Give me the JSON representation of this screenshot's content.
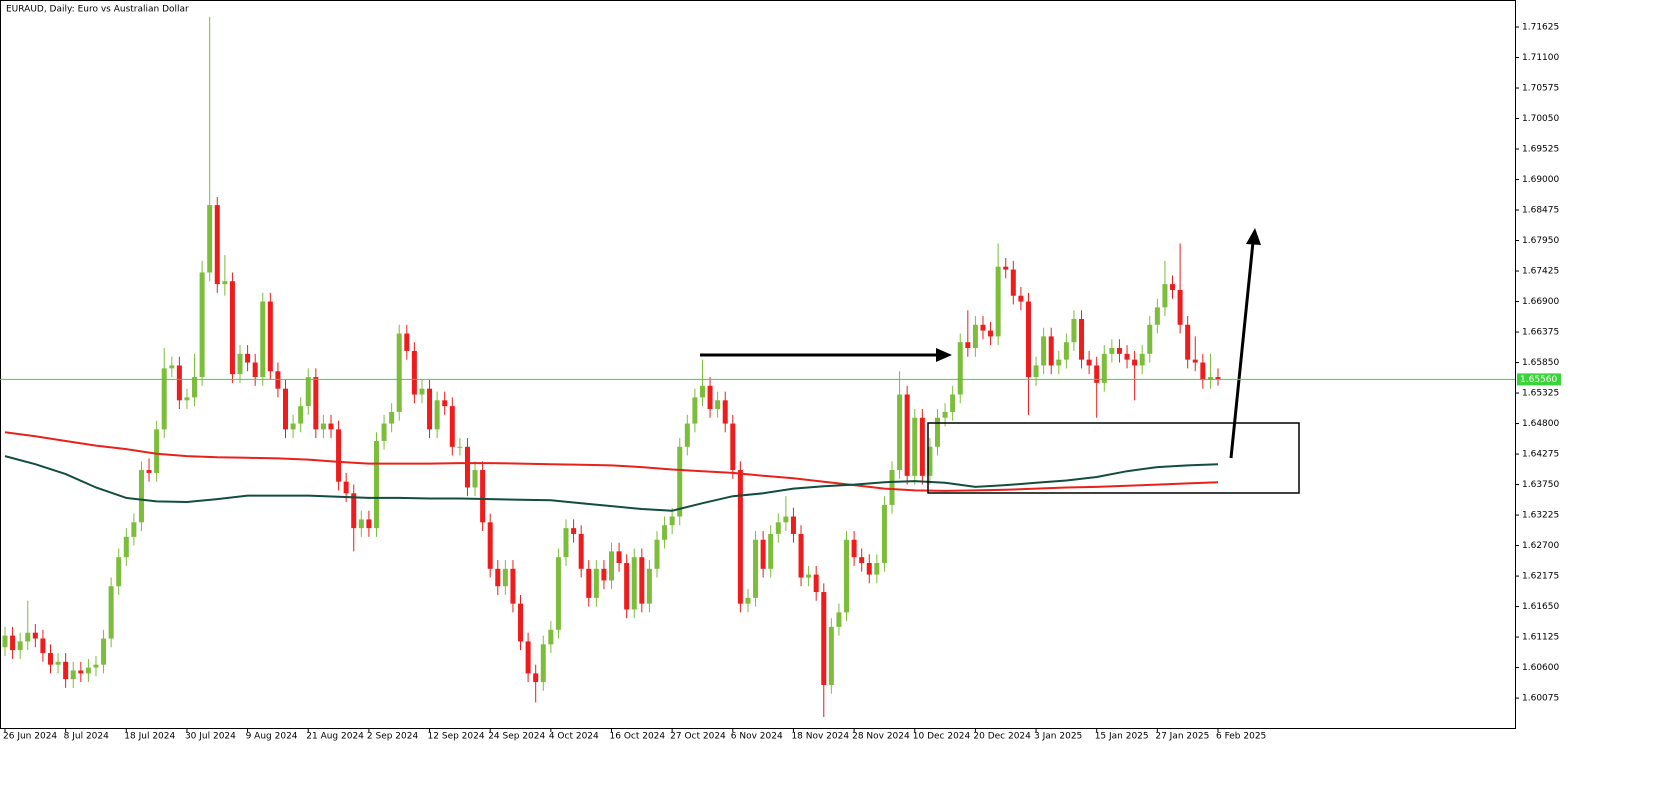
{
  "chart_data": {
    "type": "candlestick",
    "title": "EURAUD, Daily:  Euro vs Australian Dollar",
    "up_color": "#7cbd3b",
    "down_color": "#ee1c1c",
    "ylim": [
      1.5956,
      1.7209
    ],
    "yticks": [
      1.71625,
      {
        "value": 1.711,
        "label": "1.71100"
      },
      1.70575,
      {
        "value": 1.7005,
        "label": "1.70050"
      },
      1.69525,
      {
        "value": 1.69,
        "label": "1.69000"
      },
      1.68475,
      {
        "value": 1.6795,
        "label": "1.67950"
      },
      1.67425,
      {
        "value": 1.669,
        "label": "1.66900"
      },
      1.66375,
      {
        "value": 1.6585,
        "label": "1.65850"
      },
      1.65325,
      {
        "value": 1.648,
        "label": "1.64800"
      },
      1.64275,
      {
        "value": 1.6375,
        "label": "1.63750"
      },
      1.63225,
      {
        "value": 1.627,
        "label": "1.62700"
      },
      1.62175,
      {
        "value": 1.6165,
        "label": "1.61650"
      },
      1.61125,
      {
        "value": 1.606,
        "label": "1.60600"
      },
      1.60075
    ],
    "price_line": {
      "value": 1.6556,
      "label": "1.65560",
      "color": "#3ad43a"
    },
    "categories": [
      "26 Jun 2024",
      null,
      null,
      null,
      null,
      null,
      null,
      null,
      "8 Jul 2024",
      null,
      null,
      null,
      null,
      null,
      null,
      null,
      "18 Jul 2024",
      null,
      null,
      null,
      null,
      null,
      null,
      null,
      "30 Jul 2024",
      null,
      null,
      null,
      null,
      null,
      null,
      null,
      "9 Aug 2024",
      null,
      null,
      null,
      null,
      null,
      null,
      null,
      "21 Aug 2024",
      null,
      null,
      null,
      null,
      null,
      null,
      null,
      "2 Sep 2024",
      null,
      null,
      null,
      null,
      null,
      null,
      null,
      "12 Sep 2024",
      null,
      null,
      null,
      null,
      null,
      null,
      null,
      "24 Sep 2024",
      null,
      null,
      null,
      null,
      null,
      null,
      null,
      "4 Oct 2024",
      null,
      null,
      null,
      null,
      null,
      null,
      null,
      "16 Oct 2024",
      null,
      null,
      null,
      null,
      null,
      null,
      null,
      "27 Oct 2024",
      null,
      null,
      null,
      null,
      null,
      null,
      null,
      "6 Nov 2024",
      null,
      null,
      null,
      null,
      null,
      null,
      null,
      "18 Nov 2024",
      null,
      null,
      null,
      null,
      null,
      null,
      null,
      "28 Nov 2024",
      null,
      null,
      null,
      null,
      null,
      null,
      null,
      "10 Dec 2024",
      null,
      null,
      null,
      null,
      null,
      null,
      null,
      "20 Dec 2024",
      null,
      null,
      null,
      null,
      null,
      null,
      null,
      "3 Jan 2025",
      null,
      null,
      null,
      null,
      null,
      null,
      null,
      "15 Jan 2025",
      null,
      null,
      null,
      null,
      null,
      null,
      null,
      "27 Jan 2025",
      null,
      null,
      null,
      null,
      null,
      null,
      null,
      "6 Feb 2025"
    ],
    "ohlc": [
      [
        1.6095,
        1.613,
        1.608,
        1.6115
      ],
      [
        1.6115,
        1.613,
        1.6075,
        1.609
      ],
      [
        1.609,
        1.612,
        1.6075,
        1.6105
      ],
      [
        1.6105,
        1.6175,
        1.609,
        1.612
      ],
      [
        1.612,
        1.6135,
        1.6095,
        1.611
      ],
      [
        1.611,
        1.6125,
        1.607,
        1.6085
      ],
      [
        1.6085,
        1.61,
        1.605,
        1.6065
      ],
      [
        1.6065,
        1.6085,
        1.605,
        1.607
      ],
      [
        1.607,
        1.6085,
        1.6025,
        1.604
      ],
      [
        1.604,
        1.607,
        1.6025,
        1.6055
      ],
      [
        1.6055,
        1.607,
        1.6035,
        1.605
      ],
      [
        1.605,
        1.6075,
        1.6035,
        1.606
      ],
      [
        1.606,
        1.608,
        1.6045,
        1.6065
      ],
      [
        1.6065,
        1.6125,
        1.605,
        1.611
      ],
      [
        1.611,
        1.6215,
        1.6095,
        1.62
      ],
      [
        1.62,
        1.6265,
        1.6185,
        1.625
      ],
      [
        1.625,
        1.63,
        1.6235,
        1.6285
      ],
      [
        1.6285,
        1.6325,
        1.627,
        1.631
      ],
      [
        1.631,
        1.6415,
        1.6295,
        1.64
      ],
      [
        1.64,
        1.642,
        1.638,
        1.6395
      ],
      [
        1.6395,
        1.6485,
        1.638,
        1.647
      ],
      [
        1.647,
        1.661,
        1.6455,
        1.6575
      ],
      [
        1.6575,
        1.6595,
        1.656,
        1.658
      ],
      [
        1.658,
        1.6595,
        1.6505,
        1.652
      ],
      [
        1.652,
        1.654,
        1.6505,
        1.6525
      ],
      [
        1.6525,
        1.66,
        1.651,
        1.656
      ],
      [
        1.656,
        1.676,
        1.6545,
        1.674
      ],
      [
        1.674,
        1.718,
        1.6725,
        1.6856
      ],
      [
        1.6856,
        1.687,
        1.6705,
        1.672
      ],
      [
        1.672,
        1.677,
        1.67,
        1.6725
      ],
      [
        1.6725,
        1.674,
        1.655,
        1.6565
      ],
      [
        1.6565,
        1.6615,
        1.655,
        1.66
      ],
      [
        1.66,
        1.6615,
        1.657,
        1.6585
      ],
      [
        1.6585,
        1.66,
        1.6545,
        1.656
      ],
      [
        1.656,
        1.6705,
        1.6545,
        1.669
      ],
      [
        1.669,
        1.6705,
        1.6555,
        1.657
      ],
      [
        1.657,
        1.6585,
        1.6525,
        1.654
      ],
      [
        1.654,
        1.6555,
        1.6455,
        1.647
      ],
      [
        1.647,
        1.6495,
        1.6455,
        1.648
      ],
      [
        1.648,
        1.6525,
        1.6465,
        1.651
      ],
      [
        1.651,
        1.6575,
        1.6495,
        1.656
      ],
      [
        1.656,
        1.6575,
        1.6455,
        1.647
      ],
      [
        1.647,
        1.6495,
        1.6455,
        1.648
      ],
      [
        1.648,
        1.6495,
        1.6455,
        1.647
      ],
      [
        1.647,
        1.6485,
        1.6365,
        1.638
      ],
      [
        1.638,
        1.6395,
        1.6345,
        1.636
      ],
      [
        1.636,
        1.6375,
        1.626,
        1.63
      ],
      [
        1.63,
        1.633,
        1.6285,
        1.6315
      ],
      [
        1.6315,
        1.633,
        1.6285,
        1.63
      ],
      [
        1.63,
        1.6465,
        1.6285,
        1.645
      ],
      [
        1.645,
        1.6495,
        1.6435,
        1.648
      ],
      [
        1.648,
        1.6515,
        1.6465,
        1.65
      ],
      [
        1.65,
        1.665,
        1.6485,
        1.6635
      ],
      [
        1.6635,
        1.665,
        1.659,
        1.6605
      ],
      [
        1.6605,
        1.662,
        1.6515,
        1.653
      ],
      [
        1.653,
        1.6555,
        1.6515,
        1.654
      ],
      [
        1.654,
        1.6555,
        1.6455,
        1.647
      ],
      [
        1.647,
        1.6535,
        1.6455,
        1.652
      ],
      [
        1.652,
        1.6535,
        1.6495,
        1.651
      ],
      [
        1.651,
        1.6525,
        1.6425,
        1.644
      ],
      [
        1.644,
        1.6455,
        1.6425,
        1.644
      ],
      [
        1.644,
        1.6455,
        1.6355,
        1.637
      ],
      [
        1.637,
        1.6415,
        1.6355,
        1.64
      ],
      [
        1.64,
        1.6415,
        1.6295,
        1.631
      ],
      [
        1.631,
        1.6325,
        1.6215,
        1.623
      ],
      [
        1.623,
        1.6245,
        1.6185,
        1.62
      ],
      [
        1.62,
        1.6245,
        1.6185,
        1.623
      ],
      [
        1.623,
        1.6245,
        1.6155,
        1.617
      ],
      [
        1.617,
        1.6185,
        1.609,
        1.6105
      ],
      [
        1.6105,
        1.612,
        1.6035,
        1.605
      ],
      [
        1.605,
        1.6065,
        1.6,
        1.6035
      ],
      [
        1.6035,
        1.6115,
        1.602,
        1.61
      ],
      [
        1.61,
        1.614,
        1.6085,
        1.6125
      ],
      [
        1.6125,
        1.6265,
        1.611,
        1.625
      ],
      [
        1.625,
        1.6315,
        1.6235,
        1.63
      ],
      [
        1.63,
        1.6315,
        1.6275,
        1.629
      ],
      [
        1.629,
        1.6305,
        1.6215,
        1.623
      ],
      [
        1.623,
        1.6245,
        1.6165,
        1.618
      ],
      [
        1.618,
        1.6245,
        1.6165,
        1.623
      ],
      [
        1.623,
        1.6245,
        1.6195,
        1.621
      ],
      [
        1.621,
        1.6275,
        1.6195,
        1.626
      ],
      [
        1.626,
        1.6275,
        1.6225,
        1.624
      ],
      [
        1.624,
        1.6255,
        1.6145,
        1.616
      ],
      [
        1.616,
        1.6265,
        1.6145,
        1.625
      ],
      [
        1.625,
        1.6265,
        1.6155,
        1.617
      ],
      [
        1.617,
        1.6245,
        1.6155,
        1.623
      ],
      [
        1.623,
        1.6295,
        1.6215,
        1.628
      ],
      [
        1.628,
        1.632,
        1.6265,
        1.6305
      ],
      [
        1.6305,
        1.6335,
        1.629,
        1.632
      ],
      [
        1.632,
        1.6455,
        1.6305,
        1.644
      ],
      [
        1.644,
        1.6495,
        1.6425,
        1.648
      ],
      [
        1.648,
        1.654,
        1.6465,
        1.6525
      ],
      [
        1.6525,
        1.659,
        1.651,
        1.6545
      ],
      [
        1.6545,
        1.656,
        1.649,
        1.6505
      ],
      [
        1.6505,
        1.6535,
        1.649,
        1.652
      ],
      [
        1.652,
        1.6535,
        1.6465,
        1.648
      ],
      [
        1.648,
        1.6495,
        1.6385,
        1.64
      ],
      [
        1.64,
        1.6415,
        1.6155,
        1.617
      ],
      [
        1.617,
        1.6195,
        1.6155,
        1.618
      ],
      [
        1.618,
        1.6295,
        1.6165,
        1.628
      ],
      [
        1.628,
        1.6295,
        1.6215,
        1.623
      ],
      [
        1.623,
        1.6305,
        1.6215,
        1.629
      ],
      [
        1.629,
        1.6325,
        1.6275,
        1.631
      ],
      [
        1.631,
        1.6355,
        1.6295,
        1.632
      ],
      [
        1.632,
        1.6335,
        1.6275,
        1.629
      ],
      [
        1.629,
        1.6305,
        1.62,
        1.6215
      ],
      [
        1.6215,
        1.6235,
        1.62,
        1.622
      ],
      [
        1.622,
        1.6235,
        1.6175,
        1.619
      ],
      [
        1.619,
        1.6205,
        1.5975,
        1.603
      ],
      [
        1.603,
        1.6145,
        1.6015,
        1.613
      ],
      [
        1.613,
        1.617,
        1.6115,
        1.6155
      ],
      [
        1.6155,
        1.6295,
        1.614,
        1.628
      ],
      [
        1.628,
        1.6295,
        1.6235,
        1.625
      ],
      [
        1.625,
        1.6265,
        1.6225,
        1.624
      ],
      [
        1.624,
        1.6255,
        1.6205,
        1.622
      ],
      [
        1.622,
        1.6255,
        1.6205,
        1.624
      ],
      [
        1.624,
        1.6355,
        1.6225,
        1.634
      ],
      [
        1.634,
        1.6415,
        1.6325,
        1.64
      ],
      [
        1.64,
        1.657,
        1.6385,
        1.653
      ],
      [
        1.653,
        1.6545,
        1.6375,
        1.639
      ],
      [
        1.639,
        1.6505,
        1.6375,
        1.649
      ],
      [
        1.649,
        1.6505,
        1.6375,
        1.639
      ],
      [
        1.639,
        1.6455,
        1.6375,
        1.644
      ],
      [
        1.644,
        1.6505,
        1.6425,
        1.649
      ],
      [
        1.649,
        1.6515,
        1.6475,
        1.65
      ],
      [
        1.65,
        1.6545,
        1.6485,
        1.653
      ],
      [
        1.653,
        1.6635,
        1.6515,
        1.662
      ],
      [
        1.662,
        1.6675,
        1.6595,
        1.661
      ],
      [
        1.661,
        1.6665,
        1.6595,
        1.665
      ],
      [
        1.665,
        1.6665,
        1.6625,
        1.664
      ],
      [
        1.664,
        1.6655,
        1.6615,
        1.663
      ],
      [
        1.663,
        1.679,
        1.6615,
        1.675
      ],
      [
        1.675,
        1.6765,
        1.673,
        1.6745
      ],
      [
        1.6745,
        1.676,
        1.6685,
        1.67
      ],
      [
        1.67,
        1.6715,
        1.6675,
        1.669
      ],
      [
        1.669,
        1.6705,
        1.6495,
        1.656
      ],
      [
        1.656,
        1.6595,
        1.6545,
        1.658
      ],
      [
        1.658,
        1.6645,
        1.6565,
        1.663
      ],
      [
        1.663,
        1.6645,
        1.6565,
        1.658
      ],
      [
        1.658,
        1.6605,
        1.6565,
        1.659
      ],
      [
        1.659,
        1.6635,
        1.6575,
        1.662
      ],
      [
        1.662,
        1.6675,
        1.6605,
        1.666
      ],
      [
        1.666,
        1.6675,
        1.6575,
        1.659
      ],
      [
        1.659,
        1.6605,
        1.6565,
        1.658
      ],
      [
        1.658,
        1.6595,
        1.649,
        1.655
      ],
      [
        1.655,
        1.6615,
        1.6535,
        1.66
      ],
      [
        1.66,
        1.6625,
        1.6585,
        1.661
      ],
      [
        1.661,
        1.6625,
        1.6585,
        1.66
      ],
      [
        1.66,
        1.6615,
        1.6575,
        1.659
      ],
      [
        1.659,
        1.6605,
        1.652,
        1.658
      ],
      [
        1.658,
        1.6615,
        1.6565,
        1.66
      ],
      [
        1.66,
        1.6665,
        1.6585,
        1.665
      ],
      [
        1.665,
        1.6695,
        1.6635,
        1.668
      ],
      [
        1.668,
        1.676,
        1.6665,
        1.672
      ],
      [
        1.672,
        1.6735,
        1.6695,
        1.671
      ],
      [
        1.671,
        1.679,
        1.6635,
        1.665
      ],
      [
        1.665,
        1.6665,
        1.6575,
        1.659
      ],
      [
        1.659,
        1.663,
        1.657,
        1.6585
      ],
      [
        1.6585,
        1.66,
        1.654,
        1.6555
      ],
      [
        1.6555,
        1.66,
        1.654,
        1.656
      ],
      [
        1.656,
        1.6575,
        1.6545,
        1.6556
      ]
    ],
    "moving_averages": [
      {
        "color": "#e8221b",
        "values": [
          1.6465,
          1.6458,
          1.645,
          1.6442,
          1.6436,
          1.6428,
          1.6424,
          1.6422,
          1.6421,
          1.642,
          1.6418,
          1.6414,
          1.6411,
          1.6411,
          1.6411,
          1.6412,
          1.6412,
          1.6411,
          1.641,
          1.6409,
          1.6408,
          1.6405,
          1.6401,
          1.6398,
          1.6395,
          1.639,
          1.6386,
          1.638,
          1.6374,
          1.6368,
          1.6365,
          1.6364,
          1.6365,
          1.6366,
          1.6368,
          1.637,
          1.6371,
          1.6373,
          1.6375,
          1.6377,
          1.6379
        ]
      },
      {
        "color": "#124d3f",
        "values": [
          1.6424,
          1.641,
          1.6393,
          1.637,
          1.6352,
          1.6346,
          1.6345,
          1.635,
          1.6356,
          1.6356,
          1.6356,
          1.6354,
          1.6352,
          1.6352,
          1.6351,
          1.6351,
          1.635,
          1.6349,
          1.6348,
          1.6343,
          1.6338,
          1.6333,
          1.633,
          1.6343,
          1.6355,
          1.636,
          1.6368,
          1.6372,
          1.6375,
          1.6379,
          1.6381,
          1.6378,
          1.6371,
          1.6374,
          1.6378,
          1.6382,
          1.6388,
          1.6398,
          1.6405,
          1.6408,
          1.641
        ]
      }
    ]
  }
}
